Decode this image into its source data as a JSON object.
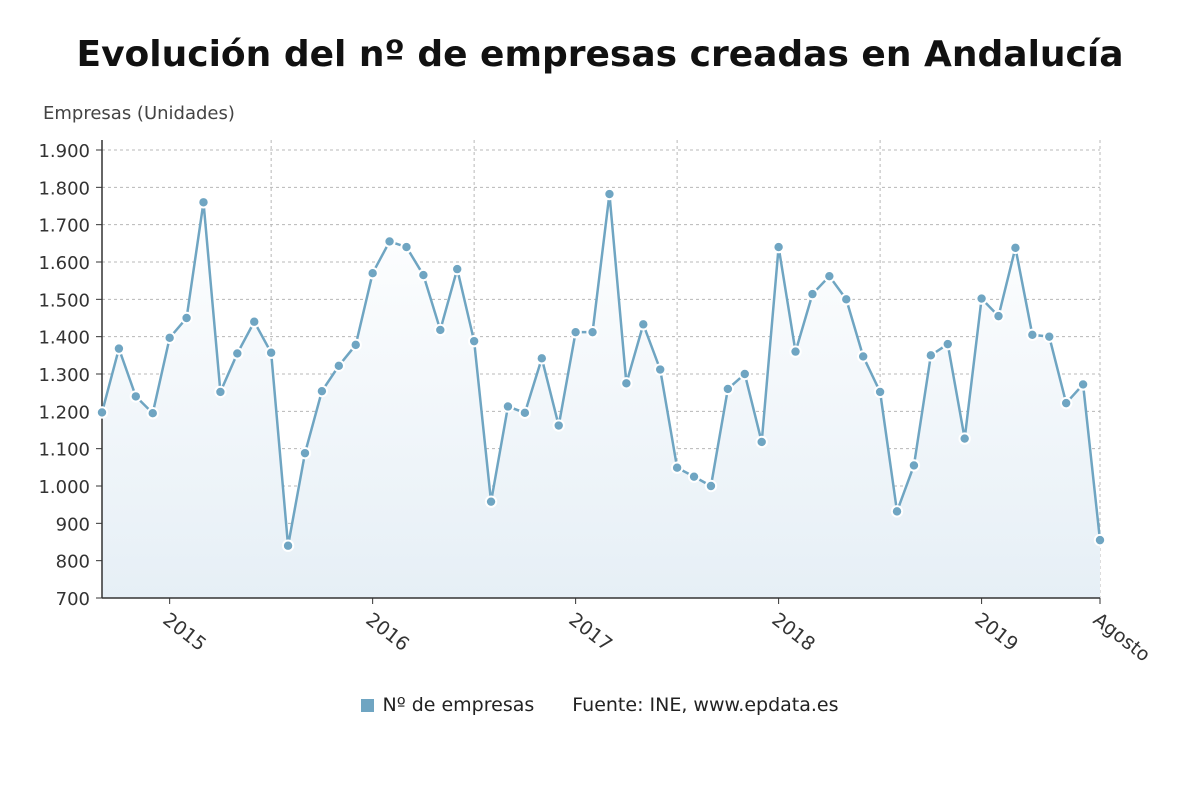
{
  "title": "Evolución del nº de empresas creadas en Andalucía",
  "colors": {
    "line": "#6fa5c2",
    "fill_top": "#ffffff",
    "fill_bottom": "#e6eff6",
    "grid": "#b8b8b8"
  },
  "legend": {
    "series_label": "Nº de empresas",
    "source": "Fuente: INE, www.epdata.es"
  },
  "chart_data": {
    "type": "area",
    "title": "Evolución del nº de empresas creadas en Andalucía",
    "ylabel": "Empresas (Unidades)",
    "xlabel": "",
    "ylim": [
      700,
      1900
    ],
    "yticks": [
      700,
      800,
      900,
      1000,
      1100,
      1200,
      1300,
      1400,
      1500,
      1600,
      1700,
      1800,
      1900
    ],
    "ytick_labels": [
      "700",
      "800",
      "900",
      "1.000",
      "1.100",
      "1.200",
      "1.300",
      "1.400",
      "1.500",
      "1.600",
      "1.700",
      "1.800",
      "1.900"
    ],
    "x_ticks": [
      {
        "label": "2015",
        "x": "2015-01"
      },
      {
        "label": "2016",
        "x": "2016-01"
      },
      {
        "label": "2017",
        "x": "2017-01"
      },
      {
        "label": "2018",
        "x": "2018-01"
      },
      {
        "label": "2019",
        "x": "2019-01"
      },
      {
        "label": "Agosto",
        "x": "2019-08"
      }
    ],
    "grid": true,
    "legend_position": "bottom",
    "series": [
      {
        "name": "Nº de empresas",
        "x": [
          "2014-09",
          "2014-10",
          "2014-11",
          "2014-12",
          "2015-01",
          "2015-02",
          "2015-03",
          "2015-04",
          "2015-05",
          "2015-06",
          "2015-07",
          "2015-08",
          "2015-09",
          "2015-10",
          "2015-11",
          "2015-12",
          "2016-01",
          "2016-02",
          "2016-03",
          "2016-04",
          "2016-05",
          "2016-06",
          "2016-07",
          "2016-08",
          "2016-09",
          "2016-10",
          "2016-11",
          "2016-12",
          "2017-01",
          "2017-02",
          "2017-03",
          "2017-04",
          "2017-05",
          "2017-06",
          "2017-07",
          "2017-08",
          "2017-09",
          "2017-10",
          "2017-11",
          "2017-12",
          "2018-01",
          "2018-02",
          "2018-03",
          "2018-04",
          "2018-05",
          "2018-06",
          "2018-07",
          "2018-08",
          "2018-09",
          "2018-10",
          "2018-11",
          "2018-12",
          "2019-01",
          "2019-02",
          "2019-03",
          "2019-04",
          "2019-05",
          "2019-06",
          "2019-07",
          "2019-08"
        ],
        "values": [
          1197,
          1368,
          1240,
          1195,
          1397,
          1450,
          1760,
          1252,
          1355,
          1440,
          1357,
          840,
          1088,
          1254,
          1322,
          1378,
          1570,
          1655,
          1640,
          1565,
          1418,
          1581,
          1388,
          958,
          1213,
          1196,
          1342,
          1162,
          1412,
          1412,
          1782,
          1275,
          1433,
          1312,
          1049,
          1025,
          1000,
          1260,
          1300,
          1118,
          1640,
          1360,
          1514,
          1562,
          1500,
          1347,
          1252,
          932,
          1055,
          1350,
          1380,
          1127,
          1502,
          1455,
          1638,
          1405,
          1400,
          1222,
          1272,
          855
        ]
      }
    ]
  }
}
